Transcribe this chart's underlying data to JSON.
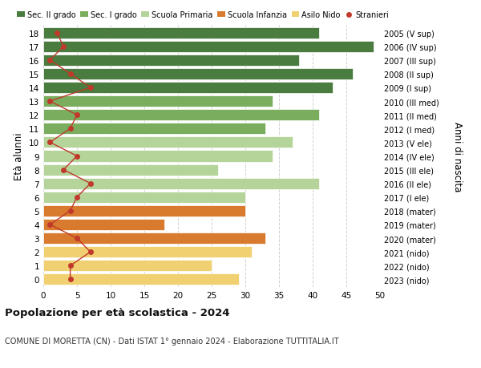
{
  "ages": [
    18,
    17,
    16,
    15,
    14,
    13,
    12,
    11,
    10,
    9,
    8,
    7,
    6,
    5,
    4,
    3,
    2,
    1,
    0
  ],
  "right_labels": [
    "2005 (V sup)",
    "2006 (IV sup)",
    "2007 (III sup)",
    "2008 (II sup)",
    "2009 (I sup)",
    "2010 (III med)",
    "2011 (II med)",
    "2012 (I med)",
    "2013 (V ele)",
    "2014 (IV ele)",
    "2015 (III ele)",
    "2016 (II ele)",
    "2017 (I ele)",
    "2018 (mater)",
    "2019 (mater)",
    "2020 (mater)",
    "2021 (nido)",
    "2022 (nido)",
    "2023 (nido)"
  ],
  "bar_values": [
    41,
    49,
    38,
    46,
    43,
    34,
    41,
    33,
    37,
    34,
    26,
    41,
    30,
    30,
    18,
    33,
    31,
    25,
    29
  ],
  "bar_colors": [
    "#4a7c3f",
    "#4a7c3f",
    "#4a7c3f",
    "#4a7c3f",
    "#4a7c3f",
    "#7aad5e",
    "#7aad5e",
    "#7aad5e",
    "#b5d49a",
    "#b5d49a",
    "#b5d49a",
    "#b5d49a",
    "#b5d49a",
    "#d97b2e",
    "#d97b2e",
    "#d97b2e",
    "#f0d070",
    "#f0d070",
    "#f0d070"
  ],
  "stranieri_values": [
    2,
    3,
    1,
    4,
    7,
    1,
    5,
    4,
    1,
    5,
    3,
    7,
    5,
    4,
    1,
    5,
    7,
    4,
    4
  ],
  "legend_labels": [
    "Sec. II grado",
    "Sec. I grado",
    "Scuola Primaria",
    "Scuola Infanzia",
    "Asilo Nido",
    "Stranieri"
  ],
  "legend_colors": [
    "#4a7c3f",
    "#7aad5e",
    "#b5d49a",
    "#d97b2e",
    "#f0d070",
    "#c0392b"
  ],
  "ylabel": "Età alunni",
  "right_ylabel": "Anni di nascita",
  "title": "Popolazione per età scolastica - 2024",
  "subtitle": "COMUNE DI MORETTA (CN) - Dati ISTAT 1° gennaio 2024 - Elaborazione TUTTITALIA.IT",
  "xlim": [
    0,
    50
  ],
  "xticks": [
    0,
    5,
    10,
    15,
    20,
    25,
    30,
    35,
    40,
    45,
    50
  ],
  "background_color": "#ffffff",
  "grid_color": "#d0d0d0"
}
